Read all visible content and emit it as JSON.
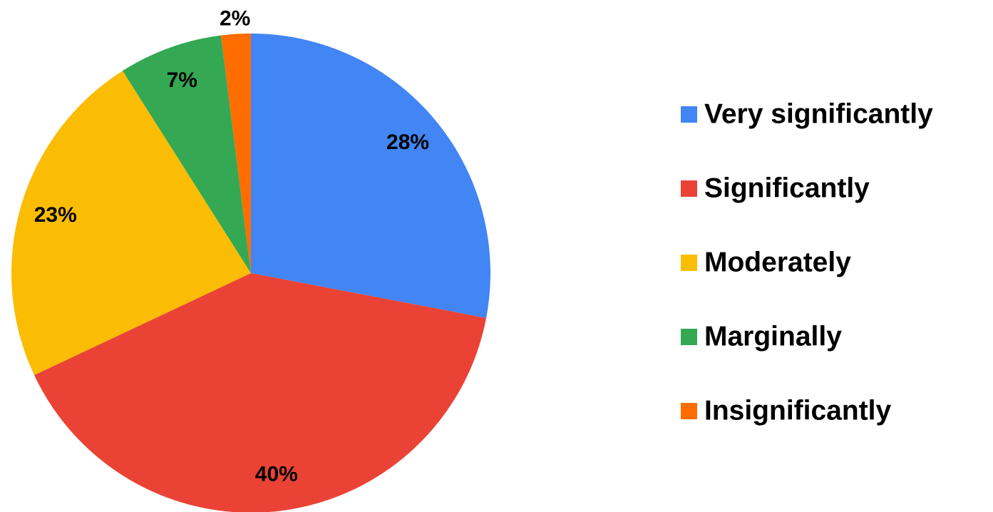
{
  "chart_data": {
    "type": "pie",
    "categories": [
      "Very significantly",
      "Significantly",
      "Moderately",
      "Marginally",
      "Insignificantly"
    ],
    "values": [
      28,
      40,
      23,
      7,
      2
    ],
    "value_labels": [
      "28%",
      "40%",
      "23%",
      "7%",
      "2%"
    ],
    "colors": [
      "#4285f4",
      "#ea4335",
      "#fbbc04",
      "#34a853",
      "#ff6d01"
    ],
    "legend": "right"
  }
}
